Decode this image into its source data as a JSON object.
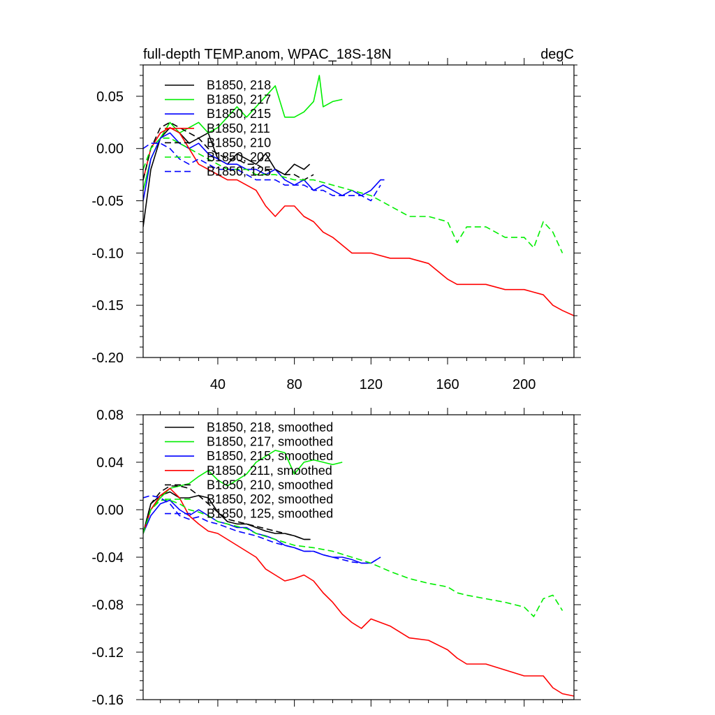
{
  "chart_data": [
    {
      "type": "line",
      "title": "full-depth TEMP.anom, WPAC_18S-18N",
      "units": "degC",
      "xlabel": "",
      "ylabel": "",
      "xlim": [
        1,
        226
      ],
      "ylim": [
        -0.2,
        0.08
      ],
      "xticks": [
        40,
        80,
        120,
        160,
        200
      ],
      "xtick_labels": [
        "40",
        "80",
        "120",
        "160",
        "200"
      ],
      "yticks": [
        -0.2,
        -0.15,
        -0.1,
        -0.05,
        0.0,
        0.05
      ],
      "ytick_labels": [
        "-0.20",
        "-0.15",
        "-0.10",
        "-0.05",
        "0.00",
        "0.05"
      ],
      "legend_position": "top-left",
      "series": [
        {
          "name": "B1850, 218",
          "color": "#000000",
          "dash": "solid",
          "x": [
            1,
            5,
            10,
            15,
            20,
            25,
            30,
            35,
            40,
            45,
            50,
            55,
            60,
            65,
            70,
            75,
            80,
            85,
            88
          ],
          "y": [
            -0.075,
            -0.02,
            0.01,
            0.02,
            0.015,
            0.005,
            0.01,
            0.015,
            -0.01,
            -0.015,
            -0.005,
            -0.01,
            -0.015,
            -0.005,
            -0.02,
            -0.025,
            -0.015,
            -0.02,
            -0.015
          ]
        },
        {
          "name": "B1850, 217",
          "color": "#00ee00",
          "dash": "solid",
          "x": [
            1,
            5,
            10,
            15,
            20,
            25,
            30,
            35,
            40,
            45,
            50,
            55,
            60,
            65,
            70,
            75,
            80,
            85,
            90,
            93,
            95,
            100,
            105
          ],
          "y": [
            -0.04,
            -0.01,
            0.01,
            0.025,
            0.015,
            0.02,
            0.025,
            0.015,
            0.02,
            0.03,
            0.04,
            0.03,
            0.04,
            0.05,
            0.06,
            0.03,
            0.03,
            0.035,
            0.045,
            0.07,
            0.04,
            0.045,
            0.047
          ]
        },
        {
          "name": "B1850, 215",
          "color": "#0000ff",
          "dash": "solid",
          "x": [
            1,
            5,
            10,
            15,
            20,
            25,
            30,
            35,
            40,
            45,
            50,
            55,
            60,
            65,
            70,
            75,
            80,
            85,
            90,
            95,
            100,
            105,
            110,
            115,
            120,
            125,
            127
          ],
          "y": [
            -0.05,
            -0.01,
            0.01,
            0.015,
            0.005,
            0.0,
            0.005,
            -0.005,
            -0.01,
            -0.015,
            -0.015,
            -0.02,
            -0.02,
            -0.025,
            -0.02,
            -0.03,
            -0.035,
            -0.03,
            -0.04,
            -0.035,
            -0.04,
            -0.045,
            -0.04,
            -0.045,
            -0.04,
            -0.03,
            -0.03
          ]
        },
        {
          "name": "B1850, 211",
          "color": "#ff0000",
          "dash": "solid",
          "x": [
            1,
            5,
            10,
            15,
            20,
            25,
            30,
            35,
            40,
            45,
            50,
            55,
            60,
            65,
            70,
            75,
            80,
            85,
            90,
            95,
            100,
            110,
            120,
            130,
            140,
            150,
            160,
            165,
            170,
            180,
            190,
            200,
            210,
            215,
            220,
            226
          ],
          "y": [
            -0.03,
            0.0,
            0.015,
            0.02,
            0.015,
            0.0,
            -0.015,
            -0.02,
            -0.025,
            -0.03,
            -0.03,
            -0.035,
            -0.04,
            -0.055,
            -0.065,
            -0.055,
            -0.055,
            -0.065,
            -0.07,
            -0.08,
            -0.085,
            -0.1,
            -0.1,
            -0.105,
            -0.105,
            -0.11,
            -0.125,
            -0.13,
            -0.13,
            -0.13,
            -0.135,
            -0.135,
            -0.14,
            -0.15,
            -0.155,
            -0.16
          ]
        },
        {
          "name": "B1850, 210",
          "color": "#000000",
          "dash": "dashed",
          "x": [
            1,
            5,
            10,
            15,
            20,
            25,
            30,
            35,
            40,
            45,
            50,
            55,
            60,
            65,
            70,
            75,
            80,
            85,
            90
          ],
          "y": [
            -0.03,
            0.0,
            0.02,
            0.025,
            0.02,
            0.015,
            0.01,
            0.0,
            -0.005,
            -0.01,
            -0.01,
            -0.015,
            -0.015,
            -0.02,
            -0.02,
            -0.025,
            -0.025,
            -0.03,
            -0.025
          ]
        },
        {
          "name": "B1850, 202",
          "color": "#00ee00",
          "dash": "dashed",
          "x": [
            1,
            5,
            10,
            15,
            20,
            25,
            30,
            35,
            40,
            45,
            50,
            55,
            60,
            70,
            80,
            90,
            100,
            110,
            120,
            130,
            140,
            150,
            160,
            165,
            170,
            180,
            190,
            195,
            200,
            205,
            210,
            215,
            220
          ],
          "y": [
            -0.02,
            0.0,
            0.01,
            0.01,
            0.005,
            0.0,
            -0.005,
            -0.01,
            -0.015,
            -0.02,
            -0.02,
            -0.02,
            -0.025,
            -0.025,
            -0.03,
            -0.03,
            -0.035,
            -0.04,
            -0.045,
            -0.055,
            -0.065,
            -0.065,
            -0.07,
            -0.09,
            -0.075,
            -0.075,
            -0.085,
            -0.085,
            -0.085,
            -0.095,
            -0.07,
            -0.08,
            -0.1
          ]
        },
        {
          "name": "B1850, 125",
          "color": "#0000ff",
          "dash": "dashed",
          "x": [
            1,
            5,
            10,
            15,
            20,
            25,
            30,
            35,
            40,
            45,
            50,
            55,
            60,
            65,
            70,
            75,
            80,
            85,
            90,
            95,
            100,
            105,
            110,
            115,
            120,
            125
          ],
          "y": [
            0.0,
            0.005,
            0.005,
            0.0,
            -0.01,
            -0.015,
            -0.01,
            -0.015,
            -0.02,
            -0.02,
            -0.02,
            -0.025,
            -0.03,
            -0.03,
            -0.03,
            -0.035,
            -0.035,
            -0.035,
            -0.04,
            -0.04,
            -0.045,
            -0.045,
            -0.045,
            -0.045,
            -0.05,
            -0.035
          ]
        }
      ]
    },
    {
      "type": "line",
      "title": "",
      "xlabel": "",
      "ylabel": "",
      "xlim": [
        1,
        226
      ],
      "ylim": [
        -0.16,
        0.08
      ],
      "xticks": [
        40,
        80,
        120,
        160,
        200
      ],
      "yticks": [
        -0.16,
        -0.12,
        -0.08,
        -0.04,
        0.0,
        0.04,
        0.08
      ],
      "ytick_labels": [
        "-0.16",
        "-0.12",
        "-0.08",
        "-0.04",
        "0.00",
        "0.04",
        "0.08"
      ],
      "legend_position": "top-left",
      "series": [
        {
          "name": "B1850, 218, smoothed",
          "color": "#000000",
          "dash": "solid",
          "x": [
            1,
            5,
            10,
            15,
            20,
            25,
            30,
            35,
            40,
            45,
            50,
            55,
            60,
            65,
            70,
            75,
            80,
            85,
            88
          ],
          "y": [
            -0.02,
            0.005,
            0.012,
            0.015,
            0.01,
            0.01,
            0.012,
            0.01,
            -0.002,
            -0.01,
            -0.012,
            -0.012,
            -0.015,
            -0.018,
            -0.02,
            -0.02,
            -0.022,
            -0.025,
            -0.025
          ]
        },
        {
          "name": "B1850, 217, smoothed",
          "color": "#00ee00",
          "dash": "solid",
          "x": [
            1,
            5,
            10,
            15,
            20,
            25,
            30,
            35,
            40,
            45,
            50,
            55,
            60,
            65,
            70,
            75,
            80,
            85,
            90,
            95,
            100,
            105
          ],
          "y": [
            -0.02,
            0.0,
            0.01,
            0.018,
            0.02,
            0.022,
            0.028,
            0.033,
            0.025,
            0.02,
            0.025,
            0.03,
            0.04,
            0.045,
            0.05,
            0.048,
            0.03,
            0.04,
            0.042,
            0.04,
            0.038,
            0.04
          ]
        },
        {
          "name": "B1850, 215, smoothed",
          "color": "#0000ff",
          "dash": "solid",
          "x": [
            1,
            5,
            10,
            15,
            20,
            25,
            30,
            35,
            40,
            45,
            50,
            55,
            60,
            65,
            70,
            75,
            80,
            85,
            90,
            95,
            100,
            105,
            110,
            115,
            120,
            125
          ],
          "y": [
            -0.02,
            -0.005,
            0.005,
            0.008,
            0.0,
            -0.005,
            0.0,
            -0.005,
            -0.01,
            -0.012,
            -0.015,
            -0.015,
            -0.02,
            -0.022,
            -0.025,
            -0.03,
            -0.032,
            -0.035,
            -0.035,
            -0.038,
            -0.04,
            -0.04,
            -0.042,
            -0.045,
            -0.045,
            -0.04
          ]
        },
        {
          "name": "B1850, 211, smoothed",
          "color": "#ff0000",
          "dash": "solid",
          "x": [
            1,
            5,
            10,
            15,
            20,
            25,
            30,
            35,
            40,
            45,
            50,
            55,
            60,
            65,
            70,
            75,
            80,
            85,
            90,
            95,
            100,
            105,
            110,
            115,
            120,
            130,
            140,
            150,
            160,
            165,
            170,
            180,
            190,
            200,
            210,
            215,
            220,
            226
          ],
          "y": [
            -0.02,
            0.0,
            0.012,
            0.018,
            0.01,
            -0.005,
            -0.012,
            -0.018,
            -0.02,
            -0.025,
            -0.03,
            -0.035,
            -0.04,
            -0.05,
            -0.055,
            -0.06,
            -0.058,
            -0.055,
            -0.06,
            -0.07,
            -0.078,
            -0.088,
            -0.095,
            -0.1,
            -0.092,
            -0.098,
            -0.108,
            -0.11,
            -0.118,
            -0.125,
            -0.13,
            -0.13,
            -0.135,
            -0.14,
            -0.14,
            -0.15,
            -0.155,
            -0.157
          ]
        },
        {
          "name": "B1850, 210, smoothed",
          "color": "#000000",
          "dash": "dashed",
          "x": [
            1,
            5,
            10,
            15,
            20,
            25,
            30,
            35,
            40,
            45,
            50,
            55,
            60,
            65,
            70,
            75,
            80,
            85,
            90
          ],
          "y": [
            -0.02,
            0.005,
            0.015,
            0.02,
            0.02,
            0.018,
            0.012,
            0.005,
            -0.002,
            -0.008,
            -0.01,
            -0.012,
            -0.014,
            -0.016,
            -0.018,
            -0.02,
            -0.022,
            -0.025,
            -0.025
          ]
        },
        {
          "name": "B1850, 202, smoothed",
          "color": "#00ee00",
          "dash": "dashed",
          "x": [
            1,
            5,
            10,
            15,
            20,
            25,
            30,
            35,
            40,
            45,
            50,
            55,
            60,
            70,
            80,
            90,
            100,
            110,
            120,
            130,
            140,
            150,
            160,
            165,
            170,
            180,
            190,
            195,
            200,
            205,
            210,
            215,
            220
          ],
          "y": [
            -0.02,
            0.0,
            0.008,
            0.008,
            0.005,
            0.0,
            -0.002,
            -0.005,
            -0.01,
            -0.012,
            -0.014,
            -0.016,
            -0.02,
            -0.025,
            -0.03,
            -0.032,
            -0.035,
            -0.04,
            -0.045,
            -0.052,
            -0.058,
            -0.062,
            -0.065,
            -0.07,
            -0.072,
            -0.075,
            -0.078,
            -0.08,
            -0.082,
            -0.09,
            -0.075,
            -0.072,
            -0.085
          ]
        },
        {
          "name": "B1850, 125, smoothed",
          "color": "#0000ff",
          "dash": "dashed",
          "x": [
            1,
            5,
            10,
            15,
            20,
            25,
            30,
            35,
            40,
            45,
            50,
            55,
            60,
            65,
            70,
            75,
            80,
            85,
            90,
            95,
            100,
            105,
            110,
            115,
            120,
            125
          ],
          "y": [
            0.01,
            0.012,
            0.01,
            0.005,
            -0.005,
            -0.008,
            -0.006,
            -0.01,
            -0.012,
            -0.015,
            -0.018,
            -0.02,
            -0.022,
            -0.025,
            -0.028,
            -0.03,
            -0.032,
            -0.035,
            -0.035,
            -0.038,
            -0.04,
            -0.042,
            -0.044,
            -0.045,
            -0.045,
            -0.04
          ]
        }
      ]
    }
  ]
}
